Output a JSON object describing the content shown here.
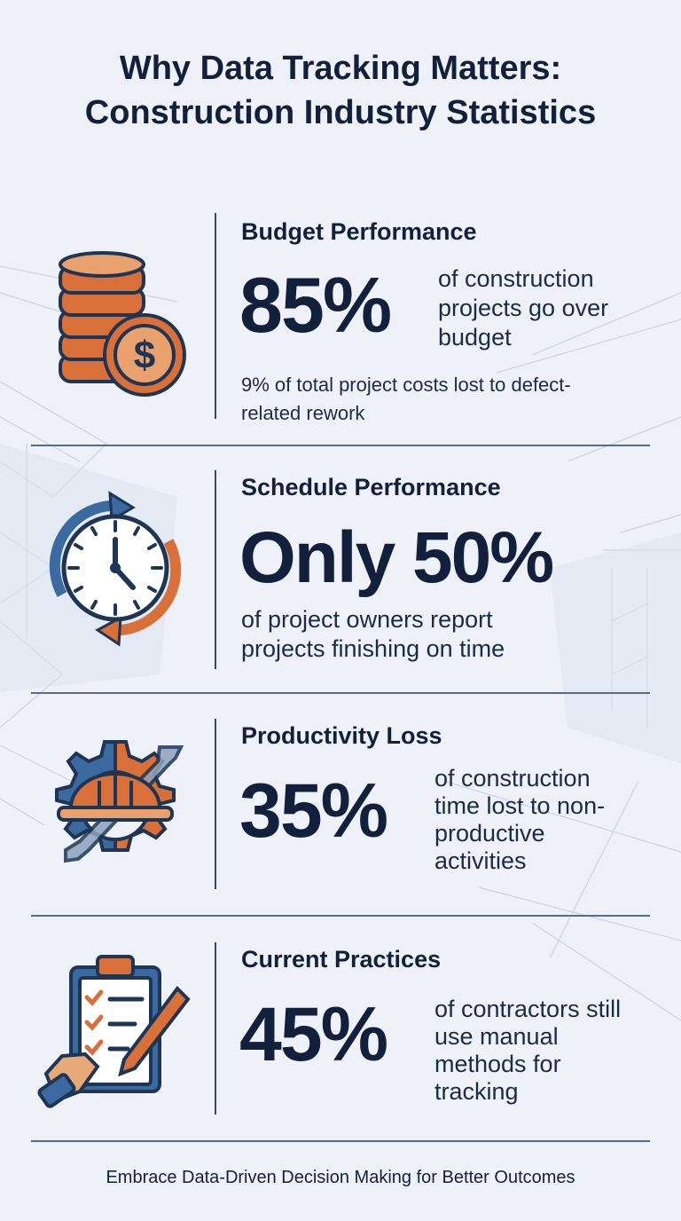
{
  "title": {
    "line1": "Why Data Tracking Matters:",
    "line2": "Construction Industry Statistics"
  },
  "sections": [
    {
      "heading": "Budget Performance",
      "stat": "85%",
      "description": "of construction projects go over budget",
      "note": "9% of total project costs lost to defect-related rework",
      "icon": "coin-stack-dollar-icon"
    },
    {
      "heading": "Schedule Performance",
      "stat": "Only 50%",
      "description": "of project owners report projects finishing on time",
      "icon": "clock-cycle-icon"
    },
    {
      "heading": "Productivity Loss",
      "stat": "35%",
      "description": "of construction time lost to non-productive activities",
      "icon": "hardhat-gear-wrench-icon"
    },
    {
      "heading": "Current Practices",
      "stat": "45%",
      "description": "of contractors still use manual methods for tracking",
      "icon": "clipboard-checklist-pen-icon"
    }
  ],
  "footer": "Embrace Data-Driven Decision Making for Better Outcomes",
  "colors": {
    "navy": "#12203c",
    "accent_orange": "#d9703a",
    "accent_blue": "#3b6aa0",
    "background": "#eef2f8"
  }
}
